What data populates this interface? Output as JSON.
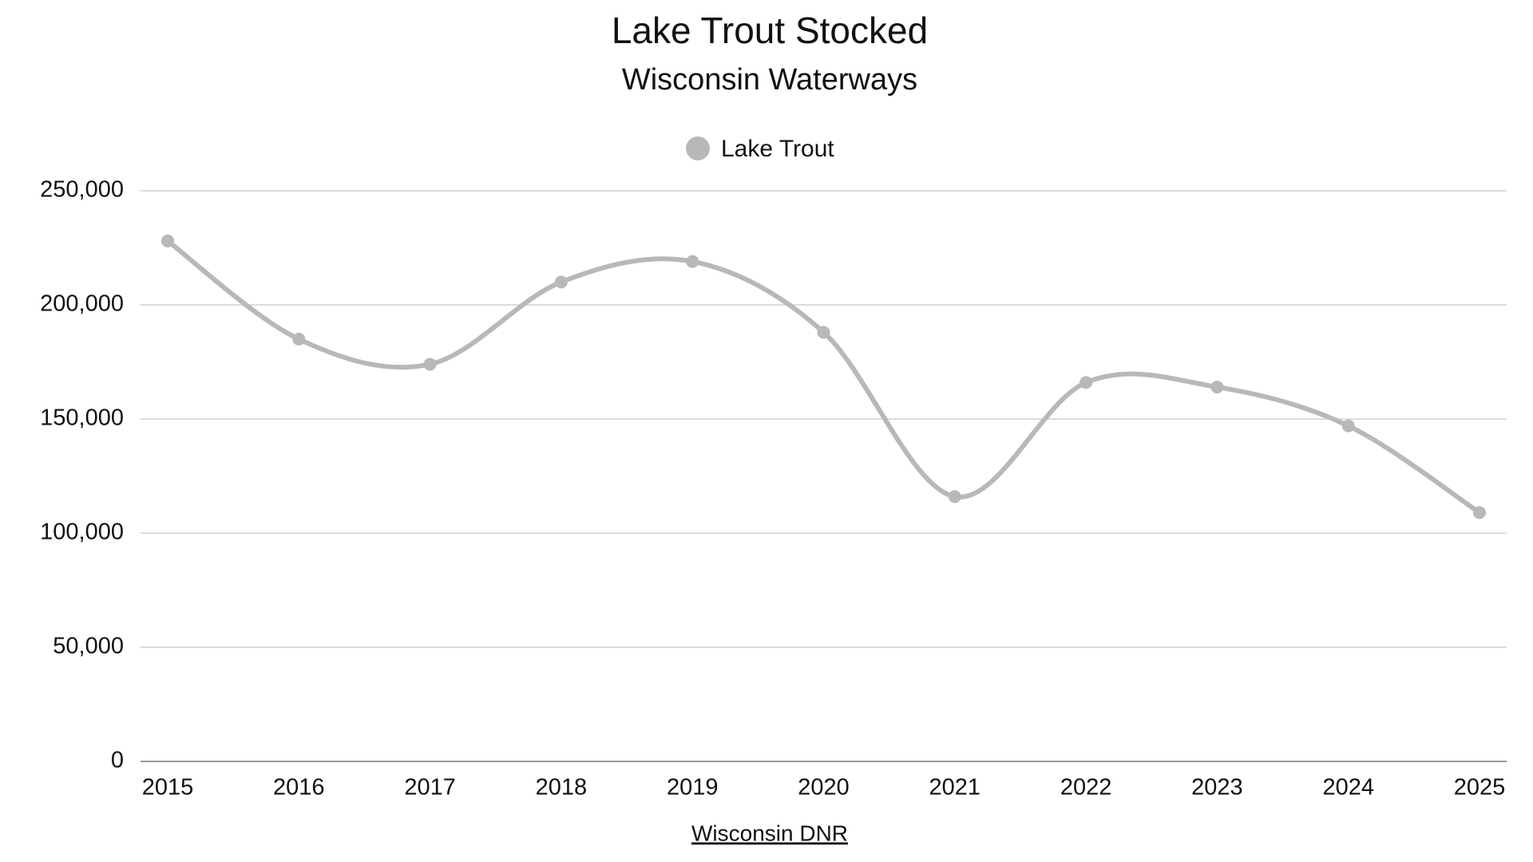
{
  "chart_data": {
    "type": "line",
    "title": "Lake Trout Stocked",
    "subtitle": "Wisconsin Waterways",
    "categories": [
      "2015",
      "2016",
      "2017",
      "2018",
      "2019",
      "2020",
      "2021",
      "2022",
      "2023",
      "2024",
      "2025"
    ],
    "series": [
      {
        "name": "Lake Trout",
        "color": "#b8b8b8",
        "values": [
          228000,
          185000,
          174000,
          210000,
          219000,
          188000,
          116000,
          166000,
          164000,
          147000,
          109000
        ]
      }
    ],
    "ylim": [
      0,
      250000
    ],
    "yticks": [
      0,
      {
        "value": 50000,
        "label": "50,000"
      },
      {
        "value": 100000,
        "label": "100,000"
      },
      {
        "value": 150000,
        "label": "150,000"
      },
      {
        "value": 200000,
        "label": "200,000"
      },
      {
        "value": 250000,
        "label": "250,000"
      }
    ],
    "grid": true,
    "smooth": true,
    "legend": "top",
    "source": "Wisconsin DNR"
  }
}
